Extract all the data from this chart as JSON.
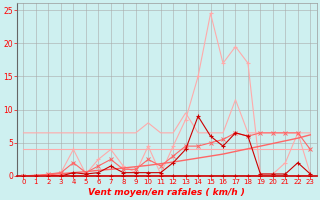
{
  "background_color": "#cef0f0",
  "grid_color": "#aaaaaa",
  "xlim": [
    -0.5,
    23.5
  ],
  "ylim": [
    0,
    26
  ],
  "yticks": [
    0,
    5,
    10,
    15,
    20,
    25
  ],
  "xticks": [
    0,
    1,
    2,
    3,
    4,
    5,
    6,
    7,
    8,
    9,
    10,
    11,
    12,
    13,
    14,
    15,
    16,
    17,
    18,
    19,
    20,
    21,
    22,
    23
  ],
  "x": [
    0,
    1,
    2,
    3,
    4,
    5,
    6,
    7,
    8,
    9,
    10,
    11,
    12,
    13,
    14,
    15,
    16,
    17,
    18,
    19,
    20,
    21,
    22,
    23
  ],
  "line_rafales_light_y": [
    0,
    0,
    0.2,
    0.5,
    4.0,
    0.3,
    2.5,
    4.0,
    1.5,
    0.5,
    4.5,
    0.3,
    4.5,
    8.5,
    15.0,
    24.5,
    17.0,
    19.5,
    17.0,
    0.3,
    0.3,
    2.0,
    6.5,
    0.3
  ],
  "line_rafales_light_color": "#ffaaaa",
  "line_mean_light_y": [
    6.5,
    6.5,
    6.5,
    6.5,
    6.5,
    6.5,
    6.5,
    6.5,
    6.5,
    6.5,
    8.0,
    6.5,
    6.5,
    9.5,
    6.5,
    6.5,
    6.5,
    11.5,
    6.5,
    6.5,
    6.5,
    6.5,
    6.5,
    6.5
  ],
  "line_mean_light_color": "#ffaaaa",
  "line_flat4_y": [
    4.0,
    4.0,
    4.0,
    4.0,
    4.0,
    4.0,
    4.0,
    4.0,
    4.0,
    4.0,
    4.0,
    4.0,
    4.0,
    4.0,
    4.0,
    4.0,
    4.0,
    4.0,
    4.0,
    4.0,
    4.0,
    4.0,
    4.0,
    4.0
  ],
  "line_flat4_color": "#ffaaaa",
  "line_trend_red_y": [
    0.0,
    0.1,
    0.2,
    0.35,
    0.5,
    0.65,
    0.85,
    1.0,
    1.2,
    1.4,
    1.6,
    1.85,
    2.1,
    2.4,
    2.7,
    3.0,
    3.3,
    3.7,
    4.1,
    4.5,
    4.9,
    5.3,
    5.7,
    6.2
  ],
  "line_trend_red_color": "#ff6666",
  "line_markers_med_y": [
    0,
    0,
    0.3,
    0.5,
    2.0,
    0.5,
    1.5,
    2.5,
    1.0,
    1.0,
    2.5,
    1.5,
    3.0,
    4.5,
    4.5,
    5.0,
    5.5,
    6.5,
    6.0,
    6.5,
    6.5,
    6.5,
    6.5,
    4.0
  ],
  "line_markers_med_color": "#ff6666",
  "line_dark_y": [
    0,
    0,
    0,
    0,
    0.5,
    0.3,
    0.5,
    1.5,
    0.5,
    0.5,
    0.5,
    0.5,
    2.0,
    4.0,
    9.0,
    6.0,
    4.5,
    6.5,
    6.0,
    0.3,
    0.3,
    0.3,
    2.0,
    0.3
  ],
  "line_dark_color": "#cc0000",
  "line_zero_y": [
    0,
    0,
    0,
    0,
    0,
    0,
    0,
    0,
    0,
    0,
    0,
    0,
    0,
    0,
    0,
    0,
    0,
    0,
    0,
    0,
    0,
    0,
    0,
    0
  ],
  "line_zero_color": "#cc0000",
  "xlabel": "Vent moyen/en rafales ( km/h )",
  "xlabel_color": "#ff0000",
  "xlabel_fontsize": 6.5,
  "tick_color": "#ff0000",
  "tick_fontsize": 5.0
}
